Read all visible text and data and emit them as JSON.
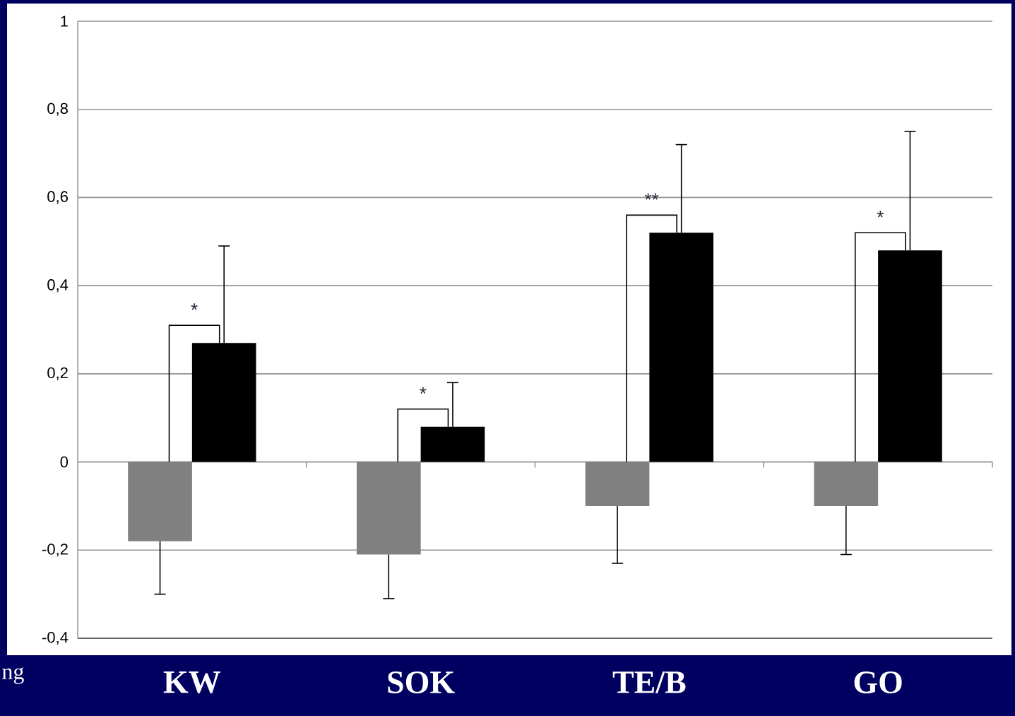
{
  "chart_data": {
    "type": "bar",
    "categories": [
      "KW",
      "SOK",
      "TE/B",
      "GO"
    ],
    "series": [
      {
        "color": "#808080",
        "values": [
          -0.18,
          -0.21,
          -0.1,
          -0.1
        ],
        "errors": [
          [
            -0.3,
            -0.18
          ],
          [
            -0.31,
            -0.21
          ],
          [
            -0.23,
            -0.1
          ],
          [
            -0.21,
            -0.1
          ]
        ]
      },
      {
        "color": "#000000",
        "values": [
          0.27,
          0.08,
          0.52,
          0.48
        ],
        "errors": [
          [
            0.27,
            0.49
          ],
          [
            0.08,
            0.18
          ],
          [
            0.52,
            0.72
          ],
          [
            0.48,
            0.75
          ]
        ]
      }
    ],
    "ylim": [
      -0.4,
      1
    ],
    "yticks": [
      {
        "value": -0.4,
        "label": "-0,4"
      },
      {
        "value": -0.2,
        "label": "-0,2"
      },
      0,
      {
        "value": 0.2,
        "label": "0,2"
      },
      {
        "value": 0.4,
        "label": "0,4"
      },
      {
        "value": 0.6,
        "label": "0,6"
      },
      {
        "value": 0.8,
        "label": "0,8"
      },
      1
    ],
    "grid": "y",
    "annotations": [
      "*",
      "*",
      "**",
      "*",
      "ng"
    ]
  }
}
